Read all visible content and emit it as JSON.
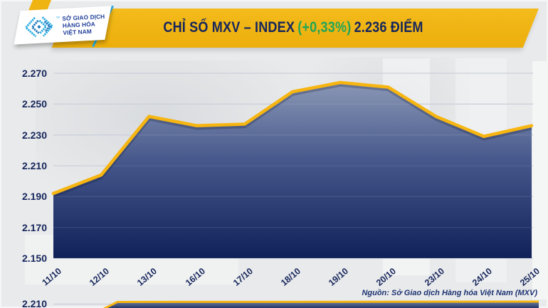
{
  "header": {
    "logo": {
      "lines": [
        "SỞ GIAO DỊCH",
        "HÀNG HÓA",
        "VIỆT NAM"
      ],
      "trademark": "™"
    },
    "title": {
      "prefix": "CHỈ SỐ MXV – INDEX",
      "change": "(+0,33%)",
      "value": "2.236 ĐIỂM"
    }
  },
  "colors": {
    "banner_yellow": "#efb412",
    "title_navy": "#16265c",
    "change_green": "#23a457",
    "line_gold": "#f6b511",
    "area_top": "#8a97b5",
    "area_bottom": "#0f2158",
    "gridline": "#c7ccd7",
    "logo_cyan": "#29abe2",
    "logo_blue": "#1b75bc"
  },
  "chart_data": [
    {
      "type": "area",
      "name": "MXV-Index",
      "x": [
        "11/10",
        "12/10",
        "13/10",
        "16/10",
        "17/10",
        "18/10",
        "19/10",
        "20/10",
        "23/10",
        "24/10",
        "25/10"
      ],
      "values": [
        2192,
        2204,
        2242,
        2236,
        2237,
        2258,
        2264,
        2261,
        2242,
        2229,
        2236
      ],
      "y_ticks": [
        2270,
        2250,
        2230,
        2210,
        2190,
        2170,
        2150
      ],
      "y_tick_labels": [
        "2.270",
        "2.250",
        "2.230",
        "2.210",
        "2.190",
        "2.170",
        "2.150"
      ],
      "ylim": [
        2150,
        2274
      ],
      "grid": true,
      "legend": "none"
    },
    {
      "type": "area",
      "name": "second-chart-cropped-sliver",
      "visible_y_tick": "2.210"
    }
  ],
  "source": {
    "label": "Nguồn: Sở Giao dịch Hàng hóa Việt Nam (MXV)"
  }
}
